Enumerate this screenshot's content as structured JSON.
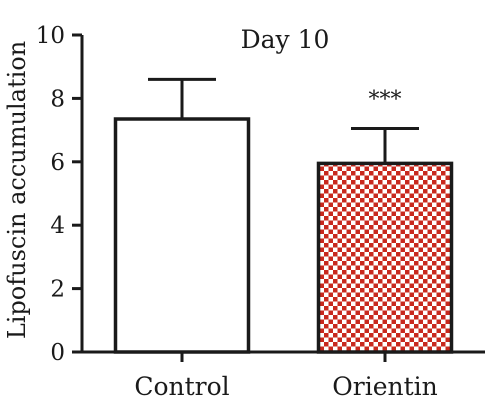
{
  "chart_data": {
    "type": "bar",
    "title": "Day 10",
    "ylabel": "Lipofuscin accumulation",
    "xlabel": "",
    "categories": [
      "Control",
      "Orientin"
    ],
    "values": [
      7.35,
      5.95
    ],
    "errors": [
      1.25,
      1.1
    ],
    "annotations": [
      "",
      "***"
    ],
    "ylim": [
      0,
      10
    ],
    "yticks": [
      "0",
      "2",
      "4",
      "6",
      "8",
      "10"
    ],
    "bar_styles": [
      "solid-white",
      "red-checkered"
    ],
    "colors": {
      "axis": "#1a1a1a",
      "control_fill": "#ffffff",
      "pattern_red": "#c8281e",
      "pattern_white": "#ffffff"
    },
    "grid": false,
    "legend": "none"
  }
}
